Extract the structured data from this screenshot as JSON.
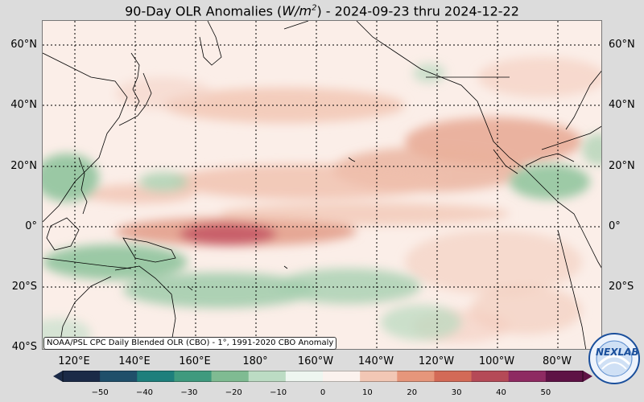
{
  "title": {
    "prefix": "90-Day OLR Anomalies (",
    "unit_base": "W/m",
    "unit_exp": "2",
    "suffix": ") - 2024-09-23 thru 2024-12-22"
  },
  "lat_labels": [
    "60°N",
    "40°N",
    "20°N",
    "0°",
    "20°S",
    "40°S"
  ],
  "lon_labels": [
    "120°E",
    "140°E",
    "160°E",
    "180°",
    "160°W",
    "140°W",
    "120°W",
    "100°W",
    "80°W"
  ],
  "credit": "NOAA/PSL CPC Daily Blended OLR (CBO) - 1°, 1991-2020 CBO Anomaly",
  "colorbar": {
    "ticks": [
      "−50",
      "−40",
      "−30",
      "−20",
      "−10",
      "0",
      "10",
      "20",
      "30",
      "40",
      "50"
    ],
    "colors": [
      "#1b2a47",
      "#1f4f6a",
      "#1e7f7c",
      "#3f9a7e",
      "#7fbb92",
      "#bcdcc4",
      "#eef6f0",
      "#fbf2ee",
      "#f2c7b5",
      "#e6967b",
      "#d36a57",
      "#b54a57",
      "#8e2a62",
      "#5e1245"
    ]
  },
  "logo": {
    "text": "NEXLAB",
    "ring_text": "UNIVERSITY AT ALBANY"
  },
  "map_colors": {
    "ocean_base": "#fbeee8",
    "positive_light": "#f3c9b8",
    "positive_mid": "#e39a84",
    "positive_strong": "#c96068",
    "negative_light": "#cfe5d4",
    "negative_mid": "#95c7a2",
    "coast": "#000000",
    "grid": "#000000"
  }
}
